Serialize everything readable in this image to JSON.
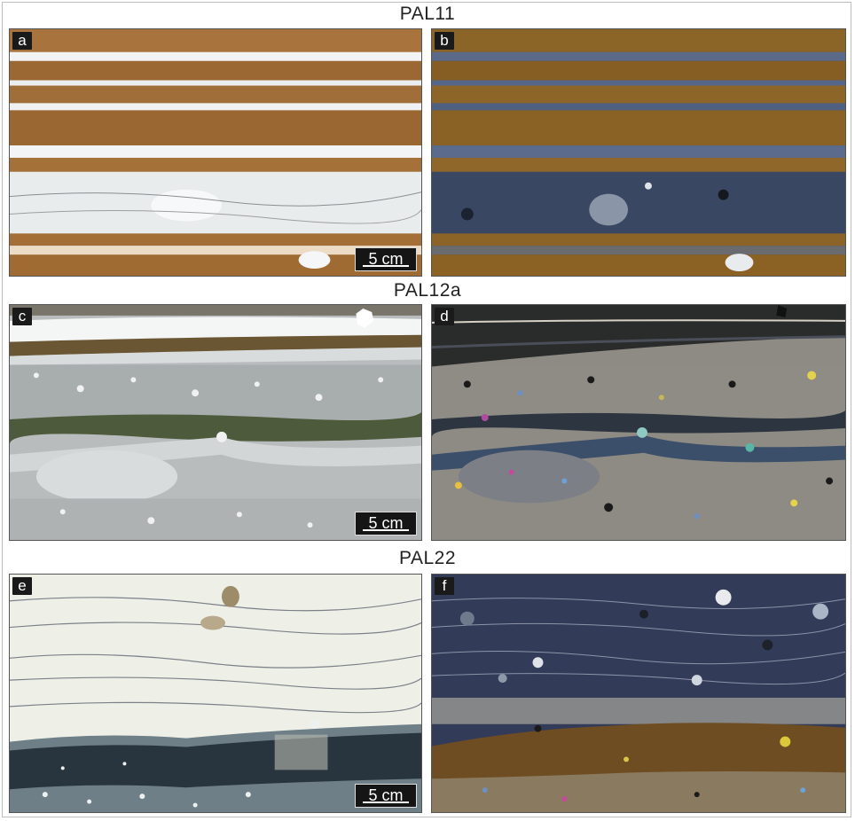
{
  "rows": [
    {
      "title": "PAL11",
      "panels": [
        {
          "label": "a",
          "lighting": "plane-polarized",
          "scale": "5 cm"
        },
        {
          "label": "b",
          "lighting": "cross-polarized"
        }
      ]
    },
    {
      "title": "PAL12a",
      "panels": [
        {
          "label": "c",
          "lighting": "plane-polarized",
          "scale": "5 cm"
        },
        {
          "label": "d",
          "lighting": "cross-polarized"
        }
      ]
    },
    {
      "title": "PAL22",
      "panels": [
        {
          "label": "e",
          "lighting": "plane-polarized",
          "scale": "5 cm"
        },
        {
          "label": "f",
          "lighting": "cross-polarized"
        }
      ]
    }
  ],
  "colors": {
    "ppl_matrix": "#e8ebee",
    "ppl_band": "#9c6a34",
    "xpl_matrix": "#3c4a66",
    "xpl_band": "#8a6326",
    "dark_layer": "#1f2a30"
  }
}
